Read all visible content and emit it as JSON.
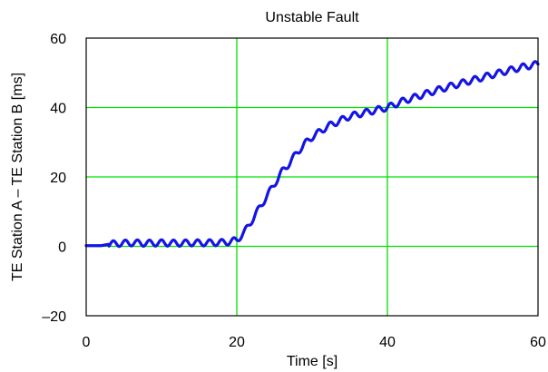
{
  "chart_data": {
    "type": "line",
    "title": "Unstable Fault",
    "xlabel": "Time [s]",
    "ylabel": "TE Station A – TE Station B [ms]",
    "xlim": [
      0,
      60
    ],
    "ylim": [
      -20,
      60
    ],
    "xticks": [
      0,
      20,
      40,
      60
    ],
    "yticks": [
      -20,
      0,
      20,
      40,
      60
    ],
    "xtick_labels": [
      "0",
      "20",
      "40",
      "60"
    ],
    "ytick_labels": [
      "–20",
      "0",
      "20",
      "40",
      "60"
    ],
    "grid": true,
    "grid_color": "#00e000",
    "series_color": "#1414e6",
    "series": [
      {
        "x": [
          0,
          2,
          3,
          4,
          6,
          8,
          10,
          12,
          14,
          16,
          18,
          19,
          20,
          21,
          22,
          23,
          24,
          25,
          26,
          27,
          28,
          29,
          30,
          31,
          32,
          33,
          34,
          35,
          36,
          37,
          38,
          39,
          40,
          42,
          44,
          46,
          48,
          50,
          52,
          54,
          56,
          58,
          60
        ],
        "y": [
          0.2,
          0.2,
          0.6,
          0.8,
          1,
          0.9,
          1,
          0.9,
          1,
          1,
          1.1,
          1.3,
          1.8,
          4,
          7.5,
          11,
          14.5,
          18,
          21.5,
          24,
          27,
          29.5,
          31.5,
          33,
          34.5,
          35.5,
          36.5,
          37.5,
          38,
          38.5,
          39,
          39.5,
          40,
          41.8,
          43.2,
          44.6,
          45.9,
          47.1,
          48.3,
          49.5,
          50.6,
          51.7,
          52.5
        ]
      }
    ],
    "oscillation_amplitude_ms": 0.9
  }
}
